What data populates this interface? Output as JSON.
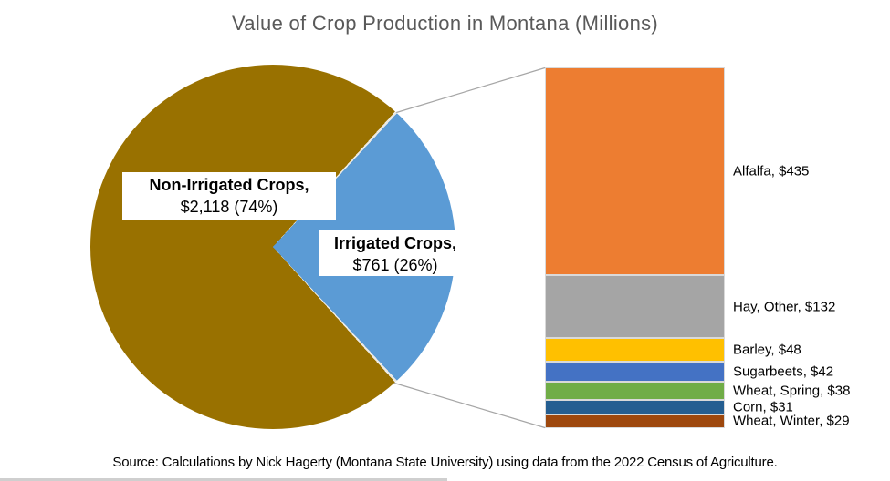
{
  "title": "Value of Crop Production in Montana (Millions)",
  "source_note": "Source: Calculations by Nick Hagerty (Montana State University) using data from the 2022 Census of Agriculture.",
  "pie_labels": {
    "non_irrigated": {
      "line1": "Non-Irrigated Crops,",
      "line2": "$2,118 (74%)"
    },
    "irrigated": {
      "line1": "Irrigated Crops,",
      "line2": "$761 (26%)"
    }
  },
  "chart_data": {
    "type": "pie",
    "subtype": "bar-of-pie",
    "title": "Value of Crop Production in Montana (Millions)",
    "units": "millions of dollars",
    "pie": {
      "slices": [
        {
          "label": "Non-Irrigated Crops",
          "value": 2118,
          "percent": 74,
          "color": "#997100"
        },
        {
          "label": "Irrigated Crops",
          "value": 761,
          "percent": 26,
          "color": "#5B9BD5"
        }
      ],
      "slice_separator_color": "#ECEAE4",
      "connector_line_color": "#A6A6A6"
    },
    "bar_breakdown": {
      "of": "Irrigated Crops",
      "items": [
        {
          "label": "Alfalfa",
          "value": 435,
          "display": "Alfalfa, $435",
          "color": "#ED7D31"
        },
        {
          "label": "Hay, Other",
          "value": 132,
          "display": "Hay, Other, $132",
          "color": "#A5A5A5"
        },
        {
          "label": "Barley",
          "value": 48,
          "display": "Barley, $48",
          "color": "#FFC000"
        },
        {
          "label": "Sugarbeets",
          "value": 42,
          "display": "Sugarbeets, $42",
          "color": "#4472C4"
        },
        {
          "label": "Wheat, Spring",
          "value": 38,
          "display": "Wheat, Spring, $38",
          "color": "#70AD47"
        },
        {
          "label": "Corn",
          "value": 31,
          "display": "Corn, $31",
          "color": "#255E91"
        },
        {
          "label": "Wheat, Winter",
          "value": 29,
          "display": "Wheat, Winter, $29",
          "color": "#9E480E"
        }
      ],
      "segment_border_color": "#D9D9D9"
    }
  }
}
